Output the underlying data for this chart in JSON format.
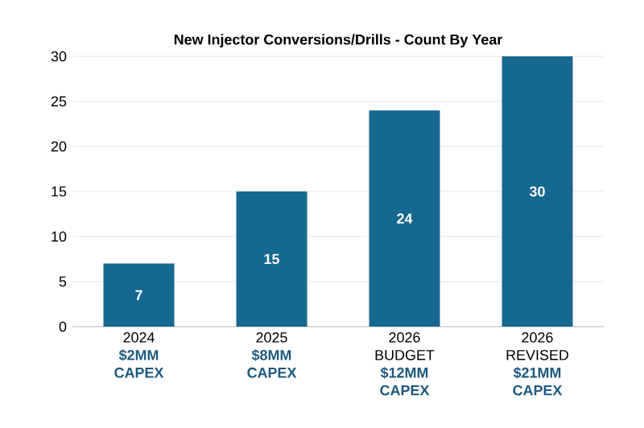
{
  "chart_data": {
    "type": "bar",
    "title": "New Injector Conversions/Drills - Count By Year",
    "categories": [
      "2024",
      "2025",
      "2026 BUDGET",
      "2026 REVISED"
    ],
    "values": [
      7,
      15,
      24,
      30
    ],
    "color": "#17688f",
    "ylim": [
      0,
      30
    ],
    "yticks": [
      0,
      5,
      10,
      15,
      20,
      25,
      30
    ],
    "grid": "y",
    "data_labels": true,
    "annotations": [
      "$2MM CAPEX",
      "$8MM CAPEX",
      "$12MM CAPEX",
      "$21MM CAPEX"
    ]
  }
}
